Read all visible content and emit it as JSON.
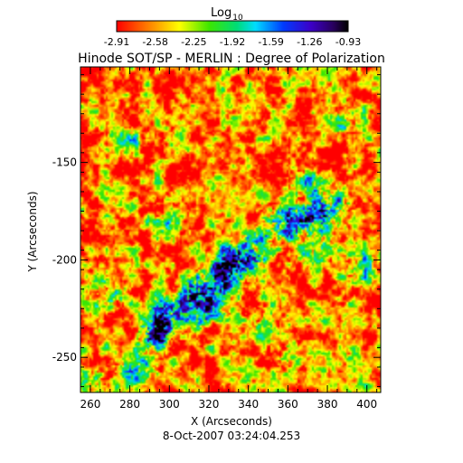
{
  "chart_data": {
    "type": "heatmap",
    "title": "Hinode SOT/SP - MERLIN : Degree of Polarization",
    "subtitle": "8-Oct-2007 03:24:04.253",
    "xlabel": "X (Arcseconds)",
    "ylabel": "Y (Arcseconds)",
    "xlim": [
      255,
      407
    ],
    "ylim": [
      -268,
      -101
    ],
    "xticks": [
      260,
      280,
      300,
      320,
      340,
      360,
      380,
      400
    ],
    "yticks": [
      -150,
      -200,
      -250
    ],
    "colorbar": {
      "label_base": "Log",
      "label_sub": "10",
      "ticks": [
        "-2.91",
        "-2.58",
        "-2.25",
        "-1.92",
        "-1.59",
        "-1.26",
        "-0.93"
      ],
      "range": [
        -2.91,
        -0.93
      ]
    },
    "features": [
      {
        "kind": "network",
        "x": 270,
        "y": -218,
        "strength": 0.55
      },
      {
        "kind": "network",
        "x": 292,
        "y": -240,
        "strength": 0.95
      },
      {
        "kind": "network",
        "x": 296,
        "y": -232,
        "strength": 0.8
      },
      {
        "kind": "network",
        "x": 300,
        "y": -225,
        "strength": 0.75
      },
      {
        "kind": "network",
        "x": 313,
        "y": -218,
        "strength": 1.0
      },
      {
        "kind": "network",
        "x": 318,
        "y": -226,
        "strength": 0.85
      },
      {
        "kind": "network",
        "x": 325,
        "y": -212,
        "strength": 0.8
      },
      {
        "kind": "network",
        "x": 330,
        "y": -205,
        "strength": 0.85
      },
      {
        "kind": "network",
        "x": 336,
        "y": -200,
        "strength": 0.9
      },
      {
        "kind": "network",
        "x": 342,
        "y": -196,
        "strength": 0.75
      },
      {
        "kind": "network",
        "x": 352,
        "y": -183,
        "strength": 0.7
      },
      {
        "kind": "network",
        "x": 362,
        "y": -180,
        "strength": 0.9
      },
      {
        "kind": "network",
        "x": 372,
        "y": -178,
        "strength": 0.85
      },
      {
        "kind": "network",
        "x": 382,
        "y": -172,
        "strength": 0.9
      },
      {
        "kind": "network",
        "x": 368,
        "y": -160,
        "strength": 0.6
      },
      {
        "kind": "network",
        "x": 398,
        "y": -205,
        "strength": 0.65
      },
      {
        "kind": "network",
        "x": 375,
        "y": -195,
        "strength": 0.6
      },
      {
        "kind": "network",
        "x": 282,
        "y": -258,
        "strength": 0.6
      },
      {
        "kind": "network",
        "x": 262,
        "y": -262,
        "strength": 0.5
      },
      {
        "kind": "network",
        "x": 300,
        "y": -180,
        "strength": 0.45
      },
      {
        "kind": "network",
        "x": 348,
        "y": -230,
        "strength": 0.5
      },
      {
        "kind": "network",
        "x": 390,
        "y": -128,
        "strength": 0.45
      },
      {
        "kind": "network",
        "x": 278,
        "y": -138,
        "strength": 0.35
      },
      {
        "kind": "network",
        "x": 360,
        "y": -250,
        "strength": 0.4
      }
    ]
  }
}
